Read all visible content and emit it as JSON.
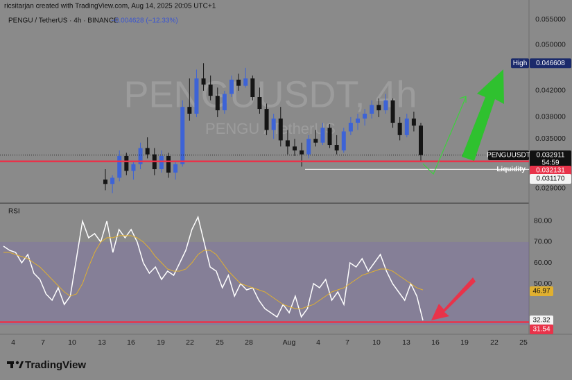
{
  "header": {
    "credit": "ricsitarjan created with TradingView.com, Aug 14, 2025 20:05 UTC+1",
    "symbol": "PENGU / TetherUS · 4h · BINANCE",
    "change": "−0.004628 (−12.33%)"
  },
  "watermark": {
    "ticker": "PENGUUSDT, 4h",
    "pair": "PENGU / TetherUS"
  },
  "x_axis": {
    "labels": [
      "4",
      "7",
      "10",
      "13",
      "16",
      "19",
      "22",
      "25",
      "28",
      "Aug",
      "4",
      "7",
      "10",
      "13",
      "16",
      "19",
      "22",
      "25"
    ]
  },
  "chart_data": [
    {
      "type": "candlestick",
      "series": [
        {
          "name": "PENGUUSDT",
          "up_color": "#3d63d6",
          "down_color": "#151515",
          "ohlc": [
            [
              0.03,
              0.0312,
              0.0288,
              0.0295
            ],
            [
              0.0295,
              0.0305,
              0.0285,
              0.0302
            ],
            [
              0.0302,
              0.0335,
              0.0298,
              0.0328
            ],
            [
              0.0328,
              0.0332,
              0.0305,
              0.031
            ],
            [
              0.031,
              0.0322,
              0.03,
              0.0318
            ],
            [
              0.0318,
              0.0345,
              0.0312,
              0.0338
            ],
            [
              0.0338,
              0.0352,
              0.0325,
              0.033
            ],
            [
              0.033,
              0.0338,
              0.0305,
              0.0312
            ],
            [
              0.0312,
              0.0335,
              0.0308,
              0.0328
            ],
            [
              0.0328,
              0.0332,
              0.0302,
              0.0308
            ],
            [
              0.0308,
              0.0322,
              0.03,
              0.0318
            ],
            [
              0.0318,
              0.0405,
              0.0315,
              0.0395
            ],
            [
              0.0395,
              0.044,
              0.0375,
              0.0385
            ],
            [
              0.0385,
              0.0455,
              0.038,
              0.044
            ],
            [
              0.044,
              0.046608,
              0.042,
              0.043
            ],
            [
              0.043,
              0.0445,
              0.0405,
              0.0412
            ],
            [
              0.0412,
              0.0425,
              0.038,
              0.039
            ],
            [
              0.039,
              0.042,
              0.0385,
              0.0415
            ],
            [
              0.0415,
              0.0445,
              0.041,
              0.0438
            ],
            [
              0.0438,
              0.0448,
              0.042,
              0.0428
            ],
            [
              0.0428,
              0.0458,
              0.0425,
              0.044
            ],
            [
              0.044,
              0.0445,
              0.0405,
              0.041
            ],
            [
              0.041,
              0.0425,
              0.0385,
              0.0392
            ],
            [
              0.0392,
              0.04,
              0.0355,
              0.0362
            ],
            [
              0.0362,
              0.0385,
              0.035,
              0.0378
            ],
            [
              0.0378,
              0.0395,
              0.034,
              0.0348
            ],
            [
              0.0348,
              0.0362,
              0.033,
              0.034
            ],
            [
              0.034,
              0.035,
              0.0328,
              0.0335
            ],
            [
              0.0335,
              0.0345,
              0.0315,
              0.033
            ],
            [
              0.033,
              0.0355,
              0.0325,
              0.035
            ],
            [
              0.035,
              0.0362,
              0.034,
              0.0345
            ],
            [
              0.0345,
              0.0372,
              0.0342,
              0.0365
            ],
            [
              0.0365,
              0.037,
              0.0338,
              0.0342
            ],
            [
              0.0342,
              0.0355,
              0.033,
              0.0335
            ],
            [
              0.0335,
              0.0365,
              0.0332,
              0.036
            ],
            [
              0.036,
              0.038,
              0.0355,
              0.0372
            ],
            [
              0.0372,
              0.0385,
              0.0362,
              0.0378
            ],
            [
              0.0378,
              0.0392,
              0.0368,
              0.0385
            ],
            [
              0.0385,
              0.0405,
              0.0378,
              0.0398
            ],
            [
              0.0398,
              0.0408,
              0.038,
              0.039
            ],
            [
              0.039,
              0.0415,
              0.0385,
              0.0405
            ],
            [
              0.0405,
              0.0408,
              0.0365,
              0.0372
            ],
            [
              0.0372,
              0.038,
              0.0348,
              0.0355
            ],
            [
              0.0355,
              0.0385,
              0.0352,
              0.0378
            ],
            [
              0.0378,
              0.0388,
              0.036,
              0.0368
            ],
            [
              0.0368,
              0.0372,
              0.0322,
              0.032911
            ]
          ]
        }
      ],
      "ylim": [
        0.0275,
        0.0577
      ],
      "log_scale": true,
      "yticks": [
        {
          "value": 0.029,
          "label": "0.029000"
        },
        {
          "value": 0.035,
          "label": "0.035000"
        },
        {
          "value": 0.038,
          "label": "0.038000"
        },
        {
          "value": 0.042,
          "label": "0.042000"
        },
        {
          "value": 0.05,
          "label": "0.050000"
        },
        {
          "value": 0.055,
          "label": "0.055000"
        }
      ],
      "markers": {
        "high": {
          "name": "High",
          "value": 0.046608,
          "label": "0.046608"
        },
        "last": {
          "name": "PENGUUSDT",
          "countdown": "54:59"
        },
        "support": {
          "value": 0.032131,
          "label": "0.032131"
        },
        "liquidity": {
          "name": "Liquidity",
          "value": 0.03117,
          "label": "0.031170"
        }
      }
    },
    {
      "type": "line",
      "title": "RSI",
      "series": [
        {
          "name": "RSI",
          "color": "#ffffff",
          "values": [
            68,
            66,
            65,
            60,
            64,
            55,
            52,
            45,
            42,
            48,
            40,
            44,
            62,
            80,
            72,
            74,
            70,
            80,
            65,
            76,
            72,
            76,
            70,
            60,
            55,
            58,
            52,
            56,
            54,
            60,
            66,
            76,
            82,
            70,
            58,
            56,
            48,
            54,
            44,
            50,
            47,
            48,
            42,
            38,
            36,
            34,
            40,
            36,
            44,
            34,
            38,
            50,
            48,
            52,
            42,
            46,
            40,
            60,
            58,
            62,
            56,
            60,
            64,
            56,
            50,
            46,
            42,
            50,
            44,
            32.32
          ]
        },
        {
          "name": "RSI MA",
          "color": "#e0b030",
          "values": [
            65,
            65,
            64,
            63,
            62,
            60,
            58,
            55,
            52,
            49,
            46,
            44,
            45,
            50,
            58,
            65,
            70,
            72,
            72,
            73,
            73,
            73,
            72,
            70,
            67,
            63,
            60,
            57,
            56,
            56,
            57,
            60,
            64,
            66,
            66,
            64,
            60,
            56,
            53,
            50,
            49,
            48,
            47,
            46,
            44,
            42,
            40,
            39,
            38,
            38,
            39,
            40,
            42,
            44,
            46,
            47,
            48,
            50,
            52,
            54,
            55,
            56,
            57,
            57,
            56,
            54,
            52,
            50,
            48,
            46.97
          ]
        }
      ],
      "ylim": [
        25.7,
        87.3
      ],
      "yticks": [
        {
          "value": 50,
          "label": "50.00"
        },
        {
          "value": 60,
          "label": "60.00"
        },
        {
          "value": 70,
          "label": "70.00"
        },
        {
          "value": 80,
          "label": "80.00"
        }
      ],
      "band": [
        30,
        70
      ],
      "level": 31.54
    }
  ],
  "brand": "TradingView"
}
